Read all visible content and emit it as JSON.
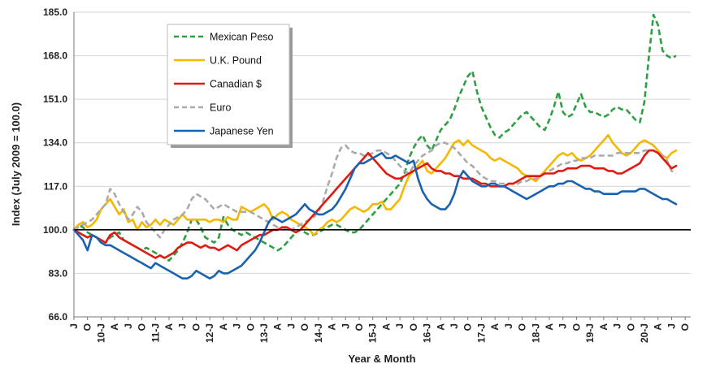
{
  "chart_data": {
    "type": "line",
    "title": "",
    "xlabel": "Year & Month",
    "ylabel": "Index (July 2009 = 100.0)",
    "ylim": [
      66.0,
      185.0
    ],
    "yticks": [
      "185.0",
      "168.0",
      "151.0",
      "134.0",
      "117.0",
      "100.0",
      "83.0",
      "66.0"
    ],
    "baseline": 100.0,
    "grid": "horizontal",
    "legend_position": "top-left",
    "x_start": "2009-07",
    "x_labels": [
      "J",
      "O",
      "10-J",
      "A",
      "J",
      "O",
      "11-J",
      "A",
      "J",
      "O",
      "12-J",
      "A",
      "J",
      "O",
      "13-J",
      "A",
      "J",
      "O",
      "14-J",
      "A",
      "J",
      "O",
      "15-J",
      "A",
      "J",
      "O",
      "16-J",
      "A",
      "J",
      "O",
      "17-J",
      "A",
      "J",
      "O",
      "18-J",
      "A",
      "J",
      "O",
      "19-J",
      "A",
      "J",
      "O",
      "20-J",
      "A",
      "J",
      "O"
    ],
    "series": [
      {
        "name": "Mexican Peso",
        "color": "#2ea043",
        "dash": "dashed",
        "values": [
          100,
          102,
          101,
          99,
          98,
          97,
          96,
          95,
          97,
          98,
          99,
          96,
          95,
          94,
          93,
          92,
          93,
          92,
          91,
          90,
          89,
          88,
          90,
          92,
          95,
          99,
          104,
          104,
          101,
          97,
          96,
          95,
          97,
          105,
          102,
          100,
          99,
          98,
          99,
          98,
          97,
          96,
          95,
          94,
          93,
          92,
          93,
          95,
          97,
          99,
          100,
          99,
          98,
          98,
          99,
          100,
          101,
          102,
          102,
          101,
          100,
          99,
          99,
          100,
          102,
          104,
          106,
          108,
          110,
          112,
          114,
          116,
          118,
          122,
          128,
          132,
          135,
          137,
          133,
          131,
          135,
          139,
          141,
          143,
          147,
          152,
          156,
          160,
          162,
          154,
          148,
          144,
          140,
          137,
          136,
          138,
          139,
          141,
          143,
          145,
          146,
          144,
          142,
          140,
          139,
          143,
          148,
          154,
          146,
          144,
          145,
          149,
          153,
          148,
          146,
          146,
          145,
          144,
          145,
          147,
          148,
          147,
          147,
          145,
          143,
          142,
          150,
          168,
          184,
          180,
          170,
          168,
          167,
          168
        ]
      },
      {
        "name": "U.K. Pound",
        "color": "#f5b800",
        "dash": "solid",
        "values": [
          100,
          102,
          103,
          101,
          102,
          104,
          108,
          110,
          112,
          109,
          106,
          108,
          103,
          104,
          100,
          103,
          101,
          102,
          104,
          102,
          104,
          103,
          102,
          104,
          106,
          104,
          104,
          104,
          104,
          104,
          103,
          104,
          104,
          103,
          105,
          104,
          104,
          109,
          108,
          107,
          108,
          109,
          110,
          108,
          104,
          106,
          107,
          106,
          104,
          103,
          102,
          101,
          100,
          98,
          100,
          101,
          103,
          104,
          103,
          104,
          106,
          108,
          109,
          108,
          107,
          108,
          110,
          110,
          111,
          108,
          108,
          110,
          112,
          117,
          121,
          123,
          125,
          127,
          123,
          122,
          124,
          126,
          128,
          131,
          134,
          135,
          133,
          135,
          133,
          132,
          131,
          130,
          128,
          127,
          128,
          127,
          126,
          125,
          124,
          122,
          121,
          120,
          119,
          121,
          123,
          125,
          127,
          129,
          130,
          129,
          130,
          128,
          127,
          128,
          129,
          131,
          133,
          135,
          137,
          134,
          132,
          130,
          129,
          130,
          132,
          134,
          135,
          134,
          133,
          131,
          129,
          128,
          130,
          131
        ]
      },
      {
        "name": "Canadian $",
        "color": "#e01a12",
        "dash": "solid",
        "values": [
          100,
          99,
          98,
          97,
          98,
          97,
          96,
          95,
          98,
          99,
          97,
          96,
          95,
          94,
          93,
          92,
          91,
          90,
          89,
          90,
          89,
          90,
          91,
          93,
          94,
          95,
          95,
          94,
          93,
          94,
          93,
          93,
          92,
          93,
          94,
          93,
          92,
          94,
          95,
          96,
          97,
          98,
          98,
          99,
          100,
          100,
          101,
          101,
          100,
          99,
          100,
          102,
          104,
          106,
          108,
          110,
          112,
          114,
          116,
          118,
          120,
          122,
          124,
          126,
          128,
          130,
          128,
          126,
          124,
          122,
          121,
          120,
          120,
          121,
          122,
          123,
          124,
          125,
          126,
          124,
          123,
          123,
          122,
          122,
          121,
          121,
          120,
          120,
          120,
          119,
          118,
          118,
          117,
          117,
          117,
          117,
          118,
          118,
          119,
          120,
          121,
          121,
          121,
          121,
          122,
          122,
          122,
          123,
          123,
          124,
          124,
          124,
          125,
          125,
          125,
          124,
          124,
          124,
          123,
          123,
          122,
          122,
          123,
          124,
          125,
          126,
          129,
          131,
          131,
          130,
          128,
          126,
          124,
          125
        ]
      },
      {
        "name": "Euro",
        "color": "#aaaaaa",
        "dash": "dashed",
        "values": [
          100,
          101,
          102,
          103,
          104,
          106,
          108,
          110,
          116,
          114,
          110,
          107,
          104,
          106,
          109,
          107,
          103,
          101,
          99,
          97,
          100,
          102,
          104,
          105,
          106,
          108,
          112,
          114,
          113,
          112,
          110,
          108,
          109,
          110,
          109,
          108,
          107,
          107,
          107,
          107,
          106,
          105,
          104,
          103,
          102,
          101,
          101,
          100,
          100,
          101,
          102,
          103,
          104,
          105,
          107,
          111,
          117,
          122,
          128,
          132,
          133,
          131,
          130,
          130,
          129,
          129,
          130,
          131,
          131,
          130,
          129,
          127,
          125,
          123,
          122,
          125,
          127,
          129,
          130,
          131,
          133,
          134,
          134,
          133,
          132,
          130,
          128,
          126,
          125,
          123,
          121,
          120,
          119,
          119,
          118,
          118,
          118,
          118,
          118,
          119,
          119,
          120,
          120,
          121,
          122,
          123,
          124,
          125,
          126,
          126,
          127,
          127,
          128,
          128,
          128,
          129,
          129,
          129,
          129,
          129,
          130,
          130,
          130,
          130,
          130,
          130,
          131,
          131,
          131,
          130,
          129,
          127,
          123,
          122
        ]
      },
      {
        "name": "Japanese Yen",
        "color": "#1a62ae",
        "dash": "solid",
        "values": [
          100,
          98,
          96,
          92,
          98,
          97,
          95,
          94,
          94,
          93,
          92,
          91,
          90,
          89,
          88,
          87,
          86,
          85,
          87,
          86,
          85,
          84,
          83,
          82,
          81,
          81,
          82,
          84,
          83,
          82,
          81,
          82,
          84,
          83,
          83,
          84,
          85,
          86,
          88,
          90,
          92,
          95,
          99,
          103,
          105,
          104,
          103,
          104,
          105,
          106,
          108,
          110,
          108,
          107,
          106,
          106,
          107,
          108,
          110,
          113,
          116,
          120,
          124,
          126,
          126,
          127,
          128,
          129,
          130,
          128,
          128,
          129,
          128,
          127,
          126,
          127,
          120,
          115,
          112,
          110,
          109,
          108,
          108,
          110,
          114,
          120,
          123,
          121,
          119,
          118,
          117,
          117,
          118,
          118,
          117,
          117,
          116,
          115,
          114,
          113,
          112,
          113,
          114,
          115,
          116,
          117,
          117,
          118,
          118,
          119,
          119,
          118,
          117,
          116,
          116,
          115,
          115,
          114,
          114,
          114,
          114,
          115,
          115,
          115,
          115,
          116,
          116,
          115,
          114,
          113,
          112,
          112,
          111,
          110
        ]
      }
    ],
    "legend": [
      "Mexican Peso",
      "U.K. Pound",
      "Canadian $",
      "Euro",
      "Japanese Yen"
    ]
  }
}
